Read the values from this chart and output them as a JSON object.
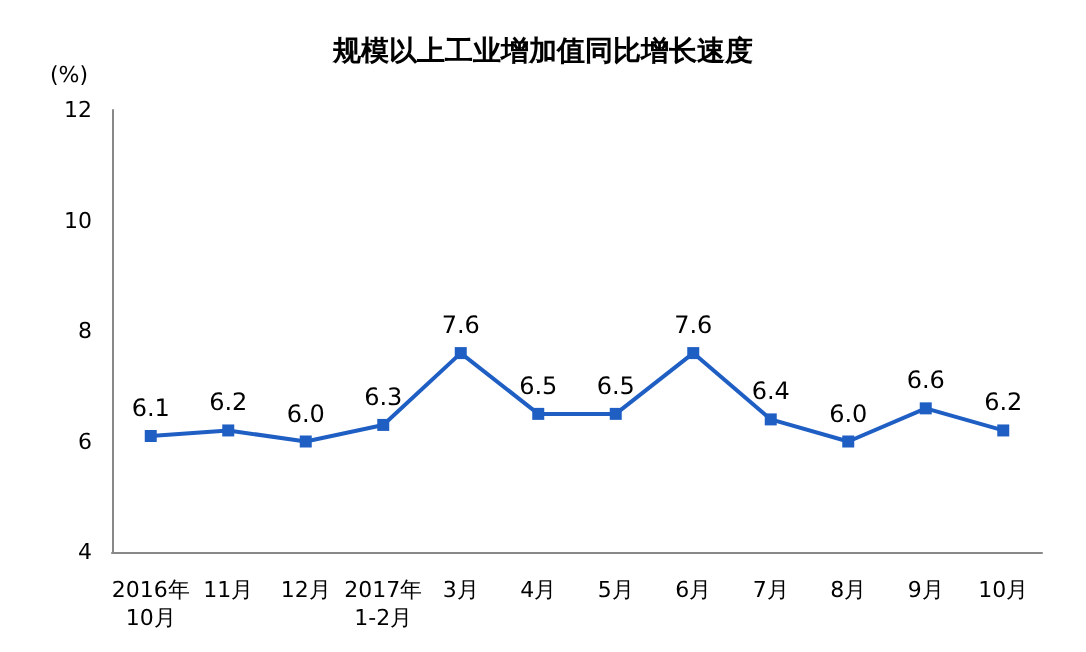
{
  "chart_data": {
    "type": "line",
    "title": "规模以上工业增加值同比增长速度",
    "ylabel": "(%)",
    "categories": [
      "2016年\n10月",
      "11月",
      "12月",
      "2017年\n1-2月",
      "3月",
      "4月",
      "5月",
      "6月",
      "7月",
      "8月",
      "9月",
      "10月"
    ],
    "values": [
      6.1,
      6.2,
      6.0,
      6.3,
      7.6,
      6.5,
      6.5,
      7.6,
      6.4,
      6.0,
      6.6,
      6.2
    ],
    "value_labels": [
      "6.1",
      "6.2",
      "6.0",
      "6.3",
      "7.6",
      "6.5",
      "6.5",
      "7.6",
      "6.4",
      "6.0",
      "6.6",
      "6.2"
    ],
    "color": "#1f5fc4",
    "marker": "square",
    "line_style": "solid",
    "ylim": [
      4,
      12
    ],
    "yticks": [
      4,
      6,
      8,
      10,
      12
    ],
    "grid": false
  }
}
